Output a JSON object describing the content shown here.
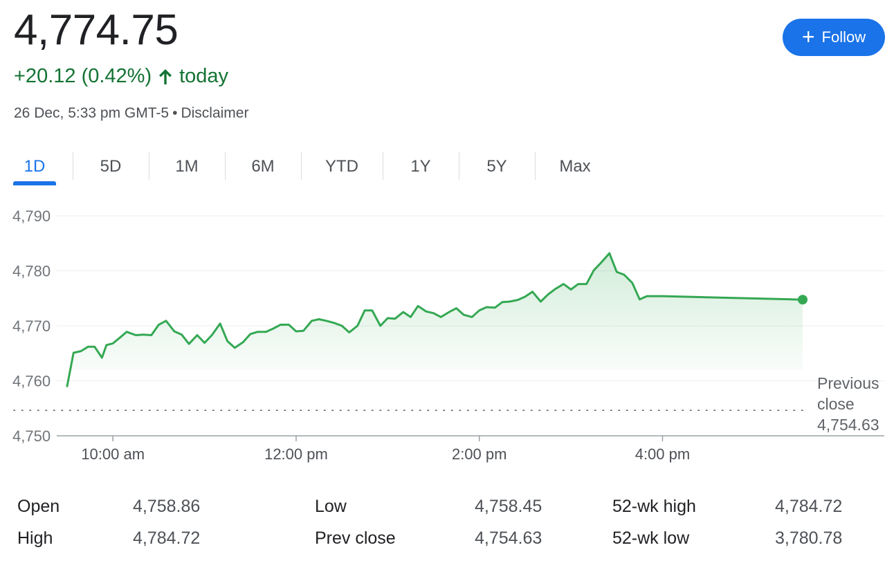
{
  "quote": {
    "price": "4,774.75",
    "change": "+20.12 (0.42%)",
    "change_suffix": "today",
    "timestamp": "26 Dec, 5:33 pm GMT-5",
    "separator": "•",
    "disclaimer": "Disclaimer",
    "follow_label": "Follow",
    "up_color": "#137333",
    "accent_color": "#1a73e8"
  },
  "tabs": [
    "1D",
    "5D",
    "1M",
    "6M",
    "YTD",
    "1Y",
    "5Y",
    "Max"
  ],
  "active_tab": "1D",
  "previous_close": {
    "label_line1": "Previous",
    "label_line2": "close",
    "value_text": "4,754.63"
  },
  "chart_data": {
    "type": "line",
    "line_color": "#34a853",
    "ylim": [
      4750,
      4790
    ],
    "yticks": [
      4750,
      4760,
      4770,
      4780,
      4790
    ],
    "ytick_labels": [
      "4,750",
      "4,760",
      "4,770",
      "4,780",
      "4,790"
    ],
    "xlim": [
      9.5,
      18.0
    ],
    "xticks": [
      10,
      12,
      14,
      16
    ],
    "xtick_labels": [
      "10:00 am",
      "12:00 pm",
      "2:00 pm",
      "4:00 pm"
    ],
    "previous_close": 4754.63,
    "series": [
      {
        "x": [
          9.5,
          9.57,
          9.65,
          9.73,
          9.8,
          9.88,
          9.93,
          10.0,
          10.08,
          10.15,
          10.25,
          10.33,
          10.42,
          10.5,
          10.58,
          10.67,
          10.75,
          10.83,
          10.92,
          11.0,
          11.08,
          11.17,
          11.25,
          11.33,
          11.42,
          11.5,
          11.58,
          11.67,
          11.75,
          11.83,
          11.92,
          12.0,
          12.08,
          12.17,
          12.25,
          12.33,
          12.42,
          12.5,
          12.58,
          12.67,
          12.75,
          12.83,
          12.92,
          13.0,
          13.08,
          13.17,
          13.25,
          13.33,
          13.42,
          13.5,
          13.58,
          13.67,
          13.75,
          13.83,
          13.92,
          14.0,
          14.08,
          14.17,
          14.25,
          14.33,
          14.42,
          14.5,
          14.58,
          14.67,
          14.75,
          14.83,
          14.92,
          15.0,
          15.08,
          15.17,
          15.25,
          15.33,
          15.42,
          15.5,
          15.58,
          15.67,
          15.75,
          15.83,
          15.9,
          16.0,
          17.53
        ],
        "y": [
          4759.0,
          4765.1,
          4765.4,
          4766.2,
          4766.2,
          4764.2,
          4766.5,
          4766.8,
          4767.9,
          4768.9,
          4768.3,
          4768.4,
          4768.3,
          4770.2,
          4770.9,
          4769.0,
          4768.4,
          4766.7,
          4768.3,
          4766.9,
          4768.3,
          4770.4,
          4767.2,
          4766.0,
          4767.0,
          4768.5,
          4768.9,
          4768.9,
          4769.5,
          4770.2,
          4770.2,
          4769.0,
          4769.1,
          4770.9,
          4771.2,
          4770.9,
          4770.5,
          4770.0,
          4768.8,
          4770.0,
          4772.8,
          4772.8,
          4770.0,
          4771.4,
          4771.3,
          4772.5,
          4771.6,
          4773.6,
          4772.6,
          4772.3,
          4771.6,
          4772.5,
          4773.2,
          4772.0,
          4771.6,
          4772.8,
          4773.4,
          4773.3,
          4774.3,
          4774.4,
          4774.7,
          4775.3,
          4776.2,
          4774.4,
          4775.7,
          4776.7,
          4777.6,
          4776.6,
          4777.6,
          4777.6,
          4780.1,
          4781.5,
          4783.2,
          4779.8,
          4779.3,
          4777.8,
          4774.8,
          4775.4,
          4775.4,
          4775.4,
          4774.75
        ]
      }
    ]
  },
  "stats": [
    [
      {
        "label": "Open",
        "value": "4,758.86"
      },
      {
        "label": "Low",
        "value": "4,758.45"
      },
      {
        "label": "52-wk high",
        "value": "4,784.72"
      }
    ],
    [
      {
        "label": "High",
        "value": "4,784.72"
      },
      {
        "label": "Prev close",
        "value": "4,754.63"
      },
      {
        "label": "52-wk low",
        "value": "3,780.78"
      }
    ]
  ]
}
